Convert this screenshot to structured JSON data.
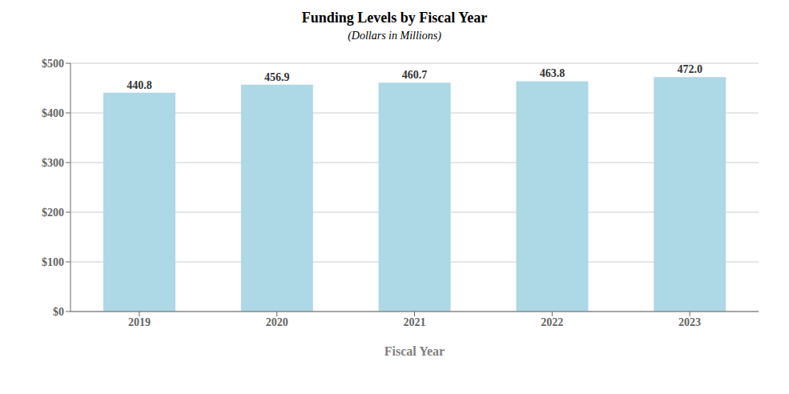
{
  "chart_data": {
    "type": "bar",
    "title": "Funding Levels by Fiscal Year",
    "subtitle": "(Dollars in Millions)",
    "xlabel": "Fiscal Year",
    "categories": [
      "2019",
      "2020",
      "2021",
      "2022",
      "2023"
    ],
    "values": [
      440.8,
      456.9,
      460.7,
      463.8,
      472.0
    ],
    "value_labels": [
      "440.8",
      "456.9",
      "460.7",
      "463.8",
      "472.0"
    ],
    "data_labels": true,
    "color": "#add8e6",
    "ylim": [
      0,
      500
    ],
    "yticks": [
      {
        "value": 0,
        "label": "$0"
      },
      {
        "value": 100,
        "label": "$100"
      },
      {
        "value": 200,
        "label": "$200"
      },
      {
        "value": 300,
        "label": "$300"
      },
      {
        "value": 400,
        "label": "$400"
      },
      {
        "value": 500,
        "label": "$500"
      }
    ],
    "grid": true
  }
}
